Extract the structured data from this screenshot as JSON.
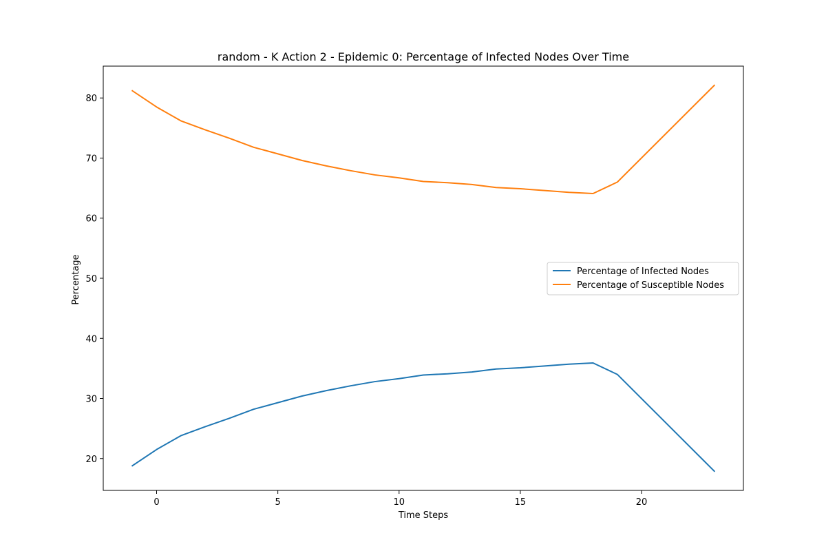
{
  "chart_data": {
    "type": "line",
    "title": "random - K Action 2 - Epidemic 0: Percentage of Infected Nodes Over Time",
    "xlabel": "Time Steps",
    "ylabel": "Percentage",
    "xlim": [
      -2.2,
      24.2
    ],
    "ylim": [
      14.7,
      85.3
    ],
    "xticks": [
      0,
      5,
      10,
      15,
      20
    ],
    "yticks": [
      20,
      30,
      40,
      50,
      60,
      70,
      80
    ],
    "grid": false,
    "legend_position": "center-right",
    "x": [
      -1,
      0,
      1,
      2,
      3,
      4,
      5,
      6,
      7,
      8,
      9,
      10,
      11,
      12,
      13,
      14,
      15,
      16,
      17,
      18,
      19,
      23
    ],
    "series": [
      {
        "name": "Percentage of Infected Nodes",
        "color": "#1f77b4",
        "values": [
          18.8,
          21.5,
          23.8,
          25.3,
          26.7,
          28.2,
          29.3,
          30.4,
          31.3,
          32.1,
          32.8,
          33.3,
          33.9,
          34.1,
          34.4,
          34.9,
          35.1,
          35.4,
          35.7,
          35.9,
          34.0,
          17.9
        ]
      },
      {
        "name": "Percentage of Susceptible Nodes",
        "color": "#ff7f0e",
        "values": [
          81.2,
          78.5,
          76.2,
          74.7,
          73.3,
          71.8,
          70.7,
          69.6,
          68.7,
          67.9,
          67.2,
          66.7,
          66.1,
          65.9,
          65.6,
          65.1,
          64.9,
          64.6,
          64.3,
          64.1,
          66.0,
          82.1
        ]
      }
    ]
  }
}
